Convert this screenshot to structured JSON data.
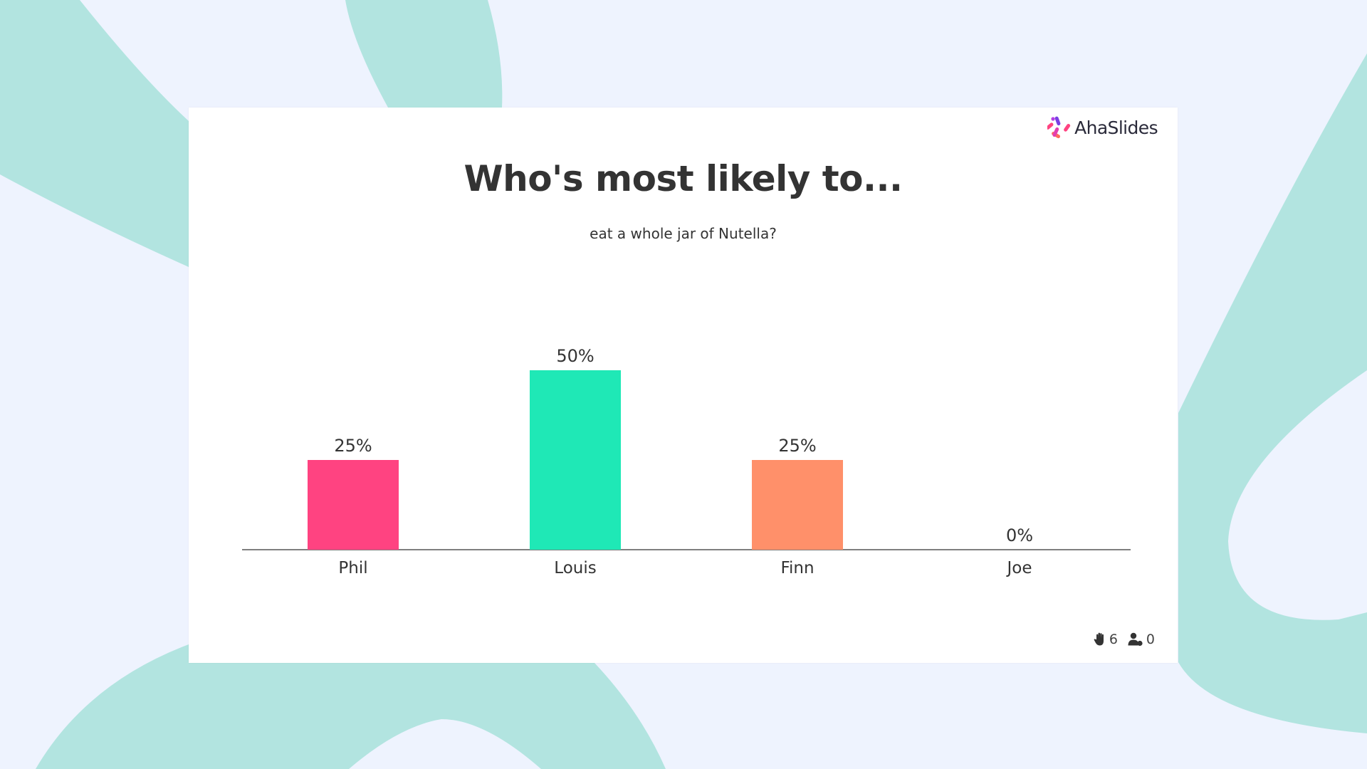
{
  "slide": {
    "title": "Who's most likely to...",
    "subtitle": "eat a whole jar of Nutella?",
    "brand": "AhaSlides"
  },
  "stats": {
    "reactions": "6",
    "participants": "0"
  },
  "colors": {
    "background": "#eef3fe",
    "shape": "#b2e4e0",
    "axis": "#555555"
  },
  "chart_data": {
    "type": "bar",
    "categories": [
      "Phil",
      "Louis",
      "Finn",
      "Joe"
    ],
    "values": [
      25,
      50,
      25,
      0
    ],
    "data_labels": [
      "25%",
      "50%",
      "25%",
      "0%"
    ],
    "colors": [
      "#ff4381",
      "#1fe8b6",
      "#ff906a",
      "#9e9e9e"
    ],
    "ylim": [
      0,
      50
    ],
    "grid": false
  }
}
